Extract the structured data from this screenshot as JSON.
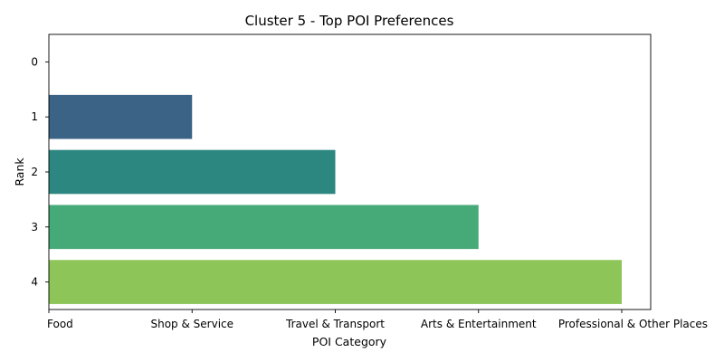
{
  "chart_data": {
    "type": "bar",
    "orientation": "horizontal",
    "title": "Cluster 5 - Top POI Preferences",
    "xlabel": "POI Category",
    "ylabel": "Rank",
    "x_categories": [
      "Food",
      "Shop & Service",
      "Travel & Transport",
      "Arts & Entertainment",
      "Professional & Other Places"
    ],
    "categories": [
      "0",
      "1",
      "2",
      "3",
      "4"
    ],
    "values": [
      0,
      1,
      2,
      3,
      4
    ],
    "colors": [
      "#440154",
      "#3b6386",
      "#2c8780",
      "#45a978",
      "#8dc558"
    ],
    "grid": false,
    "legend": false
  }
}
